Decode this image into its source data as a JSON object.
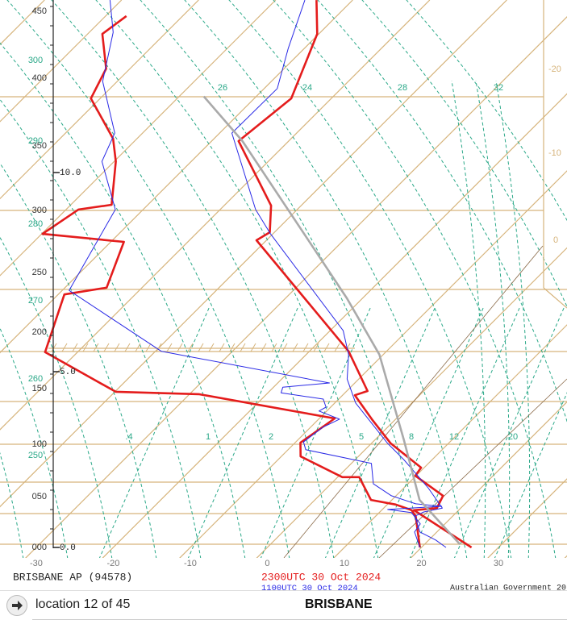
{
  "chart_data": {
    "type": "skewt",
    "xlim": [
      -34.7,
      38.9
    ],
    "xticks": [
      -30,
      -20,
      -10,
      0,
      10,
      20,
      30
    ],
    "yticks": [
      {
        "value": 0,
        "label": "0.0"
      },
      {
        "value": 5,
        "label": "5.0"
      },
      {
        "value": 10,
        "label": "10.0"
      }
    ],
    "level_labels": [
      "000",
      "050",
      "100",
      "150",
      "200",
      "250",
      "300",
      "350",
      "400",
      "450"
    ],
    "right_labels": [
      "-20",
      "-10",
      "0"
    ],
    "theta_labels": [
      "300",
      "290",
      "280",
      "270",
      "260",
      "250"
    ],
    "mixing_ratio_labels": [
      ".4",
      "1",
      "2",
      "5",
      "8",
      "12",
      "20"
    ],
    "adiabat_labels": [
      "26",
      "24",
      "28",
      "32"
    ],
    "series": [
      {
        "name": "2300UTC 30 Oct 2024",
        "color": "#e41c1c",
        "profiles": [
          {
            "x": [
              26.5,
              14.2,
              16.9,
              16.1,
              9.9,
              9.6,
              2.5,
              -3.1,
              -8.4,
              -7.3,
              -14.9,
              -41.3,
              -40.6,
              -43.9,
              -56.5,
              -55.2,
              -60.2,
              -64.7
            ],
            "y": [
              0,
              1.06,
              1.12,
              1.47,
              2.04,
              2.27,
              2.96,
              3.65,
              4.33,
              4.45,
              5.51,
              8.3,
              8.5,
              9.17,
              10.79,
              11.86,
              13.48,
              14.33
            ]
          },
          {
            "x": [
              19.8,
              15.2,
              13.9,
              11.1,
              7.3,
              2.8,
              0.6,
              -7.5,
              -9.3,
              -8.0,
              -28.8,
              -39.9,
              -54.2,
              -59.2,
              -54.6,
              -58.3,
              -69.9,
              -68.4,
              -64.7,
              -69.8,
              -73.1,
              -81.2,
              -83.1,
              -88.1,
              -87.3
            ],
            "y": [
              0,
              0.89,
              1.06,
              1.22,
              1.35,
              2.0,
              2.0,
              2.59,
              2.98,
              3.67,
              4.36,
              4.43,
              5.49,
              6.94,
              7.11,
              8.26,
              8.46,
              9.07,
              9.19,
              10.28,
              10.85,
              11.86,
              12.61,
              13.48,
              13.93
            ]
          }
        ]
      },
      {
        "name": "1100UTC 30 Oct 2024",
        "color": "#2a2ae6",
        "profiles": [
          {
            "x": [
              23.2,
              20.9,
              17.8,
              15.1,
              15.7,
              17.6,
              13.1,
              6.3,
              2.1,
              -7.3,
              -11.5,
              -14.5,
              -18.3,
              -40.3,
              -45.4,
              -58.4,
              -58.3,
              -62.1,
              -66.2
            ],
            "y": [
              0,
              0.21,
              0.44,
              0.89,
              1.01,
              1.12,
              1.7,
              2.5,
              2.96,
              4.11,
              4.79,
              5.43,
              6.03,
              8.46,
              9.07,
              10.99,
              12.11,
              13.12,
              14.33
            ]
          },
          {
            "x": [
              19.8,
              17.1,
              16.8,
              14.2,
              10.7,
              17.3,
              13.6,
              9.4,
              5.5,
              2.6,
              -7.7,
              -9.0,
              -8.4,
              -7.3,
              -11.0,
              -10.6,
              -12.0,
              -18.3,
              -18.8,
              -13.3,
              -39.2,
              -59.1,
              -63.6,
              -71.6,
              -73.6,
              -81.9,
              -86.9,
              -91.5
            ],
            "y": [
              0,
              0.44,
              0.67,
              0.99,
              1.08,
              1.17,
              1.24,
              1.47,
              1.81,
              2.39,
              2.78,
              3.0,
              3.42,
              3.65,
              3.88,
              3.99,
              4.22,
              4.4,
              4.56,
              4.68,
              5.51,
              7.04,
              9.07,
              10.28,
              10.99,
              12.29,
              13.52,
              14.33
            ]
          }
        ]
      },
      {
        "color": "#aaaaaa",
        "profiles": [
          {
            "x": [
              24.6,
              13.6,
              3.7,
              -10.5,
              -22.0,
              -32.5,
              -56.0,
              -66.8
            ],
            "y": [
              0.09,
              1.35,
              3.07,
              5.43,
              6.84,
              8.06,
              10.79,
              11.91
            ]
          }
        ]
      }
    ]
  },
  "station": "BRISBANE AP (94578)",
  "credit": "Australian Government 20",
  "nav": {
    "location": "location 12 of 45",
    "city": "BRISBANE"
  }
}
